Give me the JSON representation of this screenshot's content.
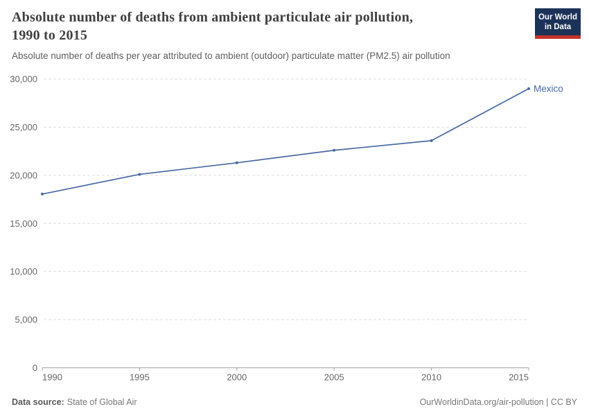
{
  "header": {
    "title": "Absolute number of deaths from ambient particulate air pollution, 1990 to 2015",
    "subtitle": "Absolute number of deaths per year attributed to ambient (outdoor) particulate matter (PM2.5) air pollution",
    "logo_line1": "Our World",
    "logo_line2": "in Data"
  },
  "chart_data": {
    "type": "line",
    "title": "Absolute number of deaths from ambient particulate air pollution, 1990 to 2015",
    "x": [
      1990,
      1995,
      2000,
      2005,
      2010,
      2015
    ],
    "series": [
      {
        "name": "Mexico",
        "color": "#4a69a4",
        "values": [
          18050,
          20100,
          21300,
          22600,
          23600,
          29000
        ]
      }
    ],
    "xlabel": "",
    "ylabel": "",
    "xlim": [
      1990,
      2015
    ],
    "ylim": [
      0,
      30000
    ],
    "yticks": [
      0,
      5000,
      10000,
      15000,
      20000,
      25000,
      30000
    ],
    "ytick_labels": [
      "0",
      "5,000",
      "10,000",
      "15,000",
      "20,000",
      "25,000",
      "30,000"
    ],
    "xticks": [
      1990,
      1995,
      2000,
      2005,
      2010,
      2015
    ],
    "xtick_labels": [
      "1990",
      "1995",
      "2000",
      "2005",
      "2010",
      "2015"
    ],
    "grid": "horizontal-dashed",
    "legend": "end-of-line-label"
  },
  "colors": {
    "line": "#4a69a4",
    "grid": "#dddddd",
    "axis": "#a0a0a0",
    "tick_text": "#666666",
    "title_text": "#404040",
    "subtitle_text": "#5f5f5f",
    "footer_text": "#777777",
    "logo_bg": "#1c3258",
    "logo_accent": "#c5332a"
  },
  "footer": {
    "source_label": "Data source:",
    "source_value": "State of Global Air",
    "attribution": "OurWorldinData.org/air-pollution | CC BY"
  }
}
